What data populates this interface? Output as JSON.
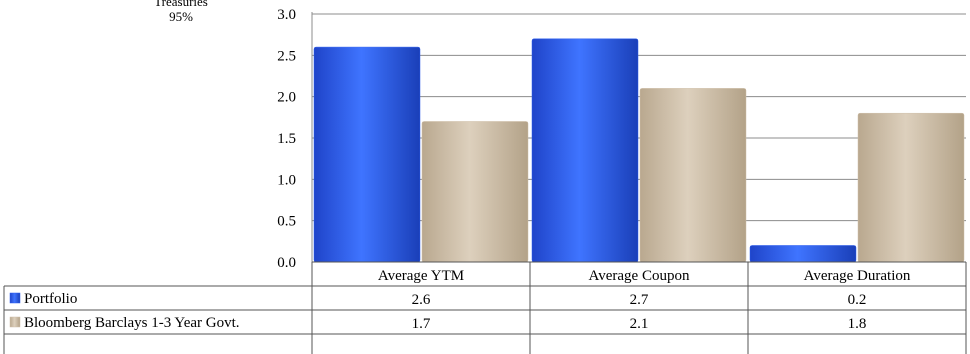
{
  "corner_label": {
    "line1": "Treasuries",
    "line2": "95%"
  },
  "chart_data": {
    "type": "bar",
    "categories": [
      "Average YTM",
      "Average Coupon",
      "Average Duration"
    ],
    "series": [
      {
        "name": "Portfolio",
        "values": [
          2.6,
          2.7,
          0.2
        ],
        "display": [
          "2.6",
          "2.7",
          "0.2"
        ],
        "color": "#2d5ff0"
      },
      {
        "name": "Bloomberg Barclays 1-3 Year Govt.",
        "values": [
          1.7,
          2.1,
          1.8
        ],
        "display": [
          "1.7",
          "2.1",
          "1.8"
        ],
        "color": "#cfbfa9"
      }
    ],
    "yticks": [
      "0.0",
      "0.5",
      "1.0",
      "1.5",
      "2.0",
      "2.5",
      "3.0"
    ],
    "ylim": [
      0,
      3.0
    ],
    "grid": true,
    "legend": "data-table"
  }
}
